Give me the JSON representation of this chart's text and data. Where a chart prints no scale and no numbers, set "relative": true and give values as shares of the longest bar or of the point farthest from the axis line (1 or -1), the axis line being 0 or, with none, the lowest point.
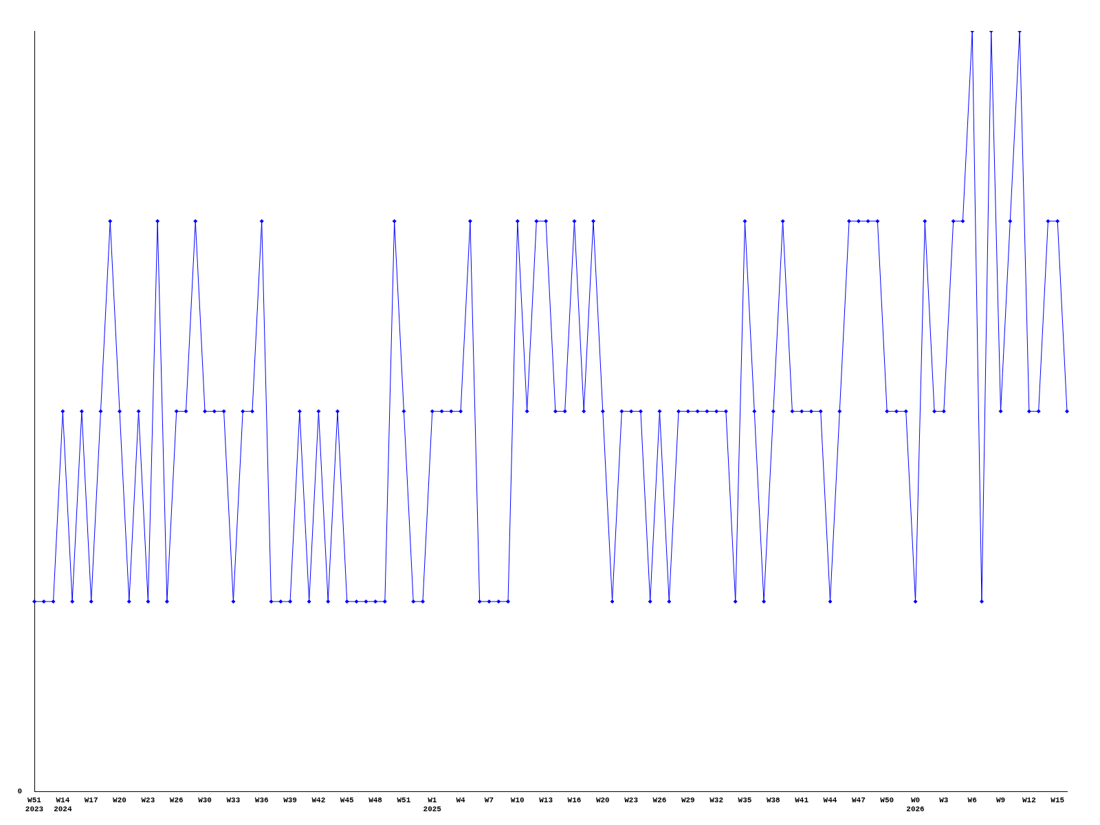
{
  "chart_data": {
    "type": "line",
    "relative": true,
    "color": "#0000ff",
    "marker": "diamond",
    "grid": false,
    "legend": false,
    "annotations": [
      "0"
    ],
    "categories": [
      "W51\n2023",
      null,
      null,
      "W14\n2024",
      null,
      null,
      "W17",
      null,
      null,
      "W20",
      null,
      null,
      "W23",
      null,
      null,
      "W26",
      null,
      null,
      "W30",
      null,
      null,
      "W33",
      null,
      null,
      "W36",
      null,
      null,
      "W39",
      null,
      null,
      "W42",
      null,
      null,
      "W45",
      null,
      null,
      "W48",
      null,
      null,
      "W51",
      null,
      null,
      "W1\n2025",
      null,
      null,
      "W4",
      null,
      null,
      "W7",
      null,
      null,
      "W10",
      null,
      null,
      "W13",
      null,
      null,
      "W16",
      null,
      null,
      "W20",
      null,
      null,
      "W23",
      null,
      null,
      "W26",
      null,
      null,
      "W29",
      null,
      null,
      "W32",
      null,
      null,
      "W35",
      null,
      null,
      "W38",
      null,
      null,
      "W41",
      null,
      null,
      "W44",
      null,
      null,
      "W47",
      null,
      null,
      "W50",
      null,
      null,
      "W0\n2026",
      null,
      null,
      "W3",
      null,
      null,
      "W6",
      null,
      null,
      "W9",
      null,
      null,
      "W12",
      null,
      null,
      "W15",
      null
    ],
    "values": [
      0.25,
      0.25,
      0.25,
      0.5,
      0.25,
      0.5,
      0.25,
      0.5,
      0.75,
      0.5,
      0.25,
      0.5,
      0.25,
      0.75,
      0.25,
      0.5,
      0.5,
      0.75,
      0.5,
      0.5,
      0.5,
      0.25,
      0.5,
      0.5,
      0.75,
      0.25,
      0.25,
      0.25,
      0.5,
      0.25,
      0.5,
      0.25,
      0.5,
      0.25,
      0.25,
      0.25,
      0.25,
      0.25,
      0.75,
      0.5,
      0.25,
      0.25,
      0.5,
      0.5,
      0.5,
      0.5,
      0.75,
      0.25,
      0.25,
      0.25,
      0.25,
      0.75,
      0.5,
      0.75,
      0.75,
      0.5,
      0.5,
      0.75,
      0.5,
      0.75,
      0.5,
      0.25,
      0.5,
      0.5,
      0.5,
      0.25,
      0.5,
      0.25,
      0.5,
      0.5,
      0.5,
      0.5,
      0.5,
      0.5,
      0.25,
      0.75,
      0.5,
      0.25,
      0.5,
      0.75,
      0.5,
      0.5,
      0.5,
      0.5,
      0.25,
      0.5,
      0.75,
      0.75,
      0.75,
      0.75,
      0.5,
      0.5,
      0.5,
      0.25,
      0.75,
      0.5,
      0.5,
      0.75,
      0.75,
      1,
      0.25,
      1,
      0.5,
      0.75,
      1,
      0.5,
      0.5,
      0.75,
      0.75,
      0.5
    ]
  }
}
